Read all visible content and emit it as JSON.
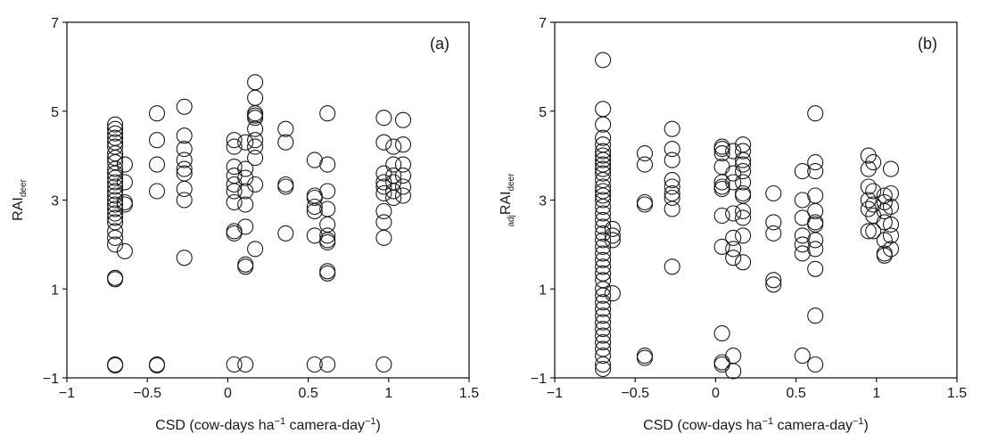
{
  "chart_data": [
    {
      "type": "scatter",
      "panel_label": "(a)",
      "xlabel": "CSD (cow-days ha⁻¹ camera-day⁻¹)",
      "xlabel_parts": {
        "pre": "CSD (cow-days ha",
        "sup1": "−1",
        "mid": " camera-day",
        "sup2": "−1",
        "post": ")"
      },
      "ylabel": "RAI deer",
      "ylabel_parts": {
        "pre_sub": "",
        "main": "RAI",
        "sub": "deer"
      },
      "xlim": [
        -1,
        1.5
      ],
      "ylim": [
        -1,
        7
      ],
      "xticks": [
        "−1",
        "−0.5",
        "0",
        "0.5",
        "1",
        "1.5"
      ],
      "xtick_values": [
        -1,
        -0.5,
        0,
        0.5,
        1,
        1.5
      ],
      "yticks": [
        "−1",
        "1",
        "3",
        "5",
        "7"
      ],
      "ytick_values": [
        -1,
        1,
        3,
        5,
        7
      ],
      "grid": false,
      "marker_color": "#1a1a1a",
      "points": [
        [
          -0.7,
          4.7
        ],
        [
          -0.7,
          4.6
        ],
        [
          -0.7,
          4.5
        ],
        [
          -0.7,
          4.4
        ],
        [
          -0.7,
          4.3
        ],
        [
          -0.7,
          4.2
        ],
        [
          -0.7,
          4.05
        ],
        [
          -0.7,
          3.95
        ],
        [
          -0.7,
          3.85
        ],
        [
          -0.7,
          3.7
        ],
        [
          -0.7,
          3.6
        ],
        [
          -0.7,
          3.5
        ],
        [
          -0.7,
          3.4
        ],
        [
          -0.7,
          3.3
        ],
        [
          -0.7,
          3.2
        ],
        [
          -0.7,
          3.1
        ],
        [
          -0.7,
          3.0
        ],
        [
          -0.7,
          2.9
        ],
        [
          -0.7,
          2.8
        ],
        [
          -0.7,
          2.7
        ],
        [
          -0.7,
          2.6
        ],
        [
          -0.7,
          2.5
        ],
        [
          -0.7,
          2.3
        ],
        [
          -0.7,
          2.15
        ],
        [
          -0.7,
          2.0
        ],
        [
          -0.7,
          1.25
        ],
        [
          -0.7,
          1.22
        ],
        [
          -0.7,
          -0.7
        ],
        [
          -0.7,
          -0.72
        ],
        [
          -0.64,
          3.8
        ],
        [
          -0.64,
          3.4
        ],
        [
          -0.64,
          2.95
        ],
        [
          -0.64,
          2.9
        ],
        [
          -0.64,
          1.85
        ],
        [
          -0.44,
          4.95
        ],
        [
          -0.44,
          4.35
        ],
        [
          -0.44,
          3.8
        ],
        [
          -0.44,
          3.2
        ],
        [
          -0.44,
          -0.7
        ],
        [
          -0.44,
          -0.72
        ],
        [
          -0.27,
          5.1
        ],
        [
          -0.27,
          4.45
        ],
        [
          -0.27,
          4.15
        ],
        [
          -0.27,
          3.9
        ],
        [
          -0.27,
          3.7
        ],
        [
          -0.27,
          3.6
        ],
        [
          -0.27,
          3.25
        ],
        [
          -0.27,
          3.0
        ],
        [
          -0.27,
          1.7
        ],
        [
          0.04,
          4.35
        ],
        [
          0.04,
          4.2
        ],
        [
          0.04,
          3.75
        ],
        [
          0.04,
          3.55
        ],
        [
          0.04,
          3.35
        ],
        [
          0.04,
          3.2
        ],
        [
          0.04,
          2.95
        ],
        [
          0.04,
          2.3
        ],
        [
          0.04,
          2.25
        ],
        [
          0.04,
          -0.7
        ],
        [
          0.11,
          4.3
        ],
        [
          0.11,
          3.7
        ],
        [
          0.11,
          3.5
        ],
        [
          0.11,
          3.2
        ],
        [
          0.11,
          2.9
        ],
        [
          0.11,
          2.4
        ],
        [
          0.11,
          1.55
        ],
        [
          0.11,
          1.5
        ],
        [
          0.11,
          -0.7
        ],
        [
          0.17,
          5.65
        ],
        [
          0.17,
          5.3
        ],
        [
          0.17,
          4.95
        ],
        [
          0.17,
          4.9
        ],
        [
          0.17,
          4.85
        ],
        [
          0.17,
          4.6
        ],
        [
          0.17,
          4.35
        ],
        [
          0.17,
          4.2
        ],
        [
          0.17,
          3.95
        ],
        [
          0.17,
          3.35
        ],
        [
          0.17,
          1.9
        ],
        [
          0.36,
          4.6
        ],
        [
          0.36,
          4.3
        ],
        [
          0.36,
          3.35
        ],
        [
          0.36,
          3.3
        ],
        [
          0.36,
          2.25
        ],
        [
          0.54,
          3.9
        ],
        [
          0.54,
          3.1
        ],
        [
          0.54,
          3.05
        ],
        [
          0.54,
          2.85
        ],
        [
          0.54,
          2.75
        ],
        [
          0.54,
          2.2
        ],
        [
          0.54,
          -0.7
        ],
        [
          0.62,
          4.95
        ],
        [
          0.62,
          3.8
        ],
        [
          0.62,
          3.2
        ],
        [
          0.62,
          2.8
        ],
        [
          0.62,
          2.45
        ],
        [
          0.62,
          2.2
        ],
        [
          0.62,
          2.1
        ],
        [
          0.62,
          2.05
        ],
        [
          0.62,
          1.4
        ],
        [
          0.62,
          1.35
        ],
        [
          0.62,
          -0.7
        ],
        [
          0.97,
          4.85
        ],
        [
          0.97,
          4.3
        ],
        [
          0.97,
          3.6
        ],
        [
          0.97,
          3.4
        ],
        [
          0.97,
          3.3
        ],
        [
          0.97,
          3.15
        ],
        [
          0.97,
          2.75
        ],
        [
          0.97,
          2.5
        ],
        [
          0.97,
          2.15
        ],
        [
          0.97,
          -0.7
        ],
        [
          1.03,
          4.2
        ],
        [
          1.03,
          3.8
        ],
        [
          1.03,
          3.55
        ],
        [
          1.03,
          3.4
        ],
        [
          1.03,
          3.2
        ],
        [
          1.03,
          3.05
        ],
        [
          1.09,
          4.8
        ],
        [
          1.09,
          4.25
        ],
        [
          1.09,
          3.8
        ],
        [
          1.09,
          3.55
        ],
        [
          1.09,
          3.3
        ],
        [
          1.09,
          3.1
        ]
      ]
    },
    {
      "type": "scatter",
      "panel_label": "(b)",
      "xlabel": "CSD (cow-days ha⁻¹ camera-day⁻¹)",
      "xlabel_parts": {
        "pre": "CSD (cow-days ha",
        "sup1": "−1",
        "mid": " camera-day",
        "sup2": "−1",
        "post": ")"
      },
      "ylabel": "adj RAI deer",
      "ylabel_parts": {
        "pre_sub": "adj",
        "main": "RAI",
        "sub": "deer"
      },
      "xlim": [
        -1,
        1.5
      ],
      "ylim": [
        -1,
        7
      ],
      "xticks": [
        "−1",
        "−0.5",
        "0",
        "0.5",
        "1",
        "1.5"
      ],
      "xtick_values": [
        -1,
        -0.5,
        0,
        0.5,
        1,
        1.5
      ],
      "yticks": [
        "−1",
        "1",
        "3",
        "5",
        "7"
      ],
      "ytick_values": [
        -1,
        1,
        3,
        5,
        7
      ],
      "grid": false,
      "marker_color": "#1a1a1a",
      "points": [
        [
          -0.7,
          6.15
        ],
        [
          -0.7,
          5.05
        ],
        [
          -0.7,
          4.7
        ],
        [
          -0.7,
          4.4
        ],
        [
          -0.7,
          4.25
        ],
        [
          -0.7,
          4.1
        ],
        [
          -0.7,
          4.0
        ],
        [
          -0.7,
          3.9
        ],
        [
          -0.7,
          3.8
        ],
        [
          -0.7,
          3.7
        ],
        [
          -0.7,
          3.6
        ],
        [
          -0.7,
          3.45
        ],
        [
          -0.7,
          3.3
        ],
        [
          -0.7,
          3.2
        ],
        [
          -0.7,
          3.1
        ],
        [
          -0.7,
          3.0
        ],
        [
          -0.7,
          2.85
        ],
        [
          -0.7,
          2.7
        ],
        [
          -0.7,
          2.55
        ],
        [
          -0.7,
          2.4
        ],
        [
          -0.7,
          2.25
        ],
        [
          -0.7,
          2.1
        ],
        [
          -0.7,
          1.95
        ],
        [
          -0.7,
          1.8
        ],
        [
          -0.7,
          1.65
        ],
        [
          -0.7,
          1.5
        ],
        [
          -0.7,
          1.35
        ],
        [
          -0.7,
          1.2
        ],
        [
          -0.7,
          1.0
        ],
        [
          -0.7,
          0.85
        ],
        [
          -0.7,
          0.7
        ],
        [
          -0.7,
          0.55
        ],
        [
          -0.7,
          0.4
        ],
        [
          -0.7,
          0.25
        ],
        [
          -0.7,
          0.1
        ],
        [
          -0.7,
          -0.05
        ],
        [
          -0.7,
          -0.2
        ],
        [
          -0.7,
          -0.35
        ],
        [
          -0.7,
          -0.5
        ],
        [
          -0.7,
          -0.7
        ],
        [
          -0.7,
          -0.8
        ],
        [
          -0.64,
          2.35
        ],
        [
          -0.64,
          2.2
        ],
        [
          -0.64,
          2.1
        ],
        [
          -0.64,
          0.9
        ],
        [
          -0.44,
          4.05
        ],
        [
          -0.44,
          3.8
        ],
        [
          -0.44,
          2.95
        ],
        [
          -0.44,
          2.9
        ],
        [
          -0.44,
          -0.5
        ],
        [
          -0.44,
          -0.55
        ],
        [
          -0.27,
          4.6
        ],
        [
          -0.27,
          4.15
        ],
        [
          -0.27,
          3.9
        ],
        [
          -0.27,
          3.45
        ],
        [
          -0.27,
          3.3
        ],
        [
          -0.27,
          3.15
        ],
        [
          -0.27,
          3.05
        ],
        [
          -0.27,
          2.8
        ],
        [
          -0.27,
          1.5
        ],
        [
          0.04,
          4.2
        ],
        [
          0.04,
          4.15
        ],
        [
          0.04,
          4.05
        ],
        [
          0.04,
          3.75
        ],
        [
          0.04,
          3.4
        ],
        [
          0.04,
          3.3
        ],
        [
          0.04,
          3.25
        ],
        [
          0.04,
          2.65
        ],
        [
          0.04,
          1.95
        ],
        [
          0.04,
          0.0
        ],
        [
          0.04,
          -0.65
        ],
        [
          0.04,
          -0.7
        ],
        [
          0.11,
          4.1
        ],
        [
          0.11,
          3.6
        ],
        [
          0.11,
          3.4
        ],
        [
          0.11,
          2.7
        ],
        [
          0.11,
          2.15
        ],
        [
          0.11,
          1.9
        ],
        [
          0.11,
          1.7
        ],
        [
          0.11,
          -0.5
        ],
        [
          0.11,
          -0.85
        ],
        [
          0.17,
          4.25
        ],
        [
          0.17,
          4.1
        ],
        [
          0.17,
          3.9
        ],
        [
          0.17,
          3.8
        ],
        [
          0.17,
          3.65
        ],
        [
          0.17,
          3.4
        ],
        [
          0.17,
          3.15
        ],
        [
          0.17,
          3.1
        ],
        [
          0.17,
          2.75
        ],
        [
          0.17,
          2.6
        ],
        [
          0.17,
          2.2
        ],
        [
          0.17,
          1.6
        ],
        [
          0.36,
          3.15
        ],
        [
          0.36,
          2.5
        ],
        [
          0.36,
          2.25
        ],
        [
          0.36,
          1.2
        ],
        [
          0.36,
          1.1
        ],
        [
          0.54,
          3.65
        ],
        [
          0.54,
          3.0
        ],
        [
          0.54,
          2.6
        ],
        [
          0.54,
          2.2
        ],
        [
          0.54,
          2.0
        ],
        [
          0.54,
          1.8
        ],
        [
          0.54,
          -0.5
        ],
        [
          0.62,
          4.95
        ],
        [
          0.62,
          3.85
        ],
        [
          0.62,
          3.65
        ],
        [
          0.62,
          3.1
        ],
        [
          0.62,
          2.75
        ],
        [
          0.62,
          2.5
        ],
        [
          0.62,
          2.45
        ],
        [
          0.62,
          2.1
        ],
        [
          0.62,
          1.9
        ],
        [
          0.62,
          1.45
        ],
        [
          0.62,
          0.4
        ],
        [
          0.62,
          -0.7
        ],
        [
          0.95,
          4.0
        ],
        [
          0.95,
          3.7
        ],
        [
          0.95,
          3.3
        ],
        [
          0.95,
          3.0
        ],
        [
          0.95,
          2.8
        ],
        [
          0.95,
          2.3
        ],
        [
          0.98,
          3.85
        ],
        [
          0.98,
          3.2
        ],
        [
          0.98,
          2.9
        ],
        [
          0.98,
          2.65
        ],
        [
          0.98,
          2.3
        ],
        [
          1.05,
          3.1
        ],
        [
          1.05,
          2.95
        ],
        [
          1.05,
          2.75
        ],
        [
          1.05,
          2.5
        ],
        [
          1.05,
          2.1
        ],
        [
          1.05,
          1.8
        ],
        [
          1.05,
          1.75
        ],
        [
          1.09,
          3.7
        ],
        [
          1.09,
          3.15
        ],
        [
          1.09,
          2.85
        ],
        [
          1.09,
          2.45
        ],
        [
          1.09,
          2.2
        ],
        [
          1.09,
          1.9
        ]
      ]
    }
  ]
}
